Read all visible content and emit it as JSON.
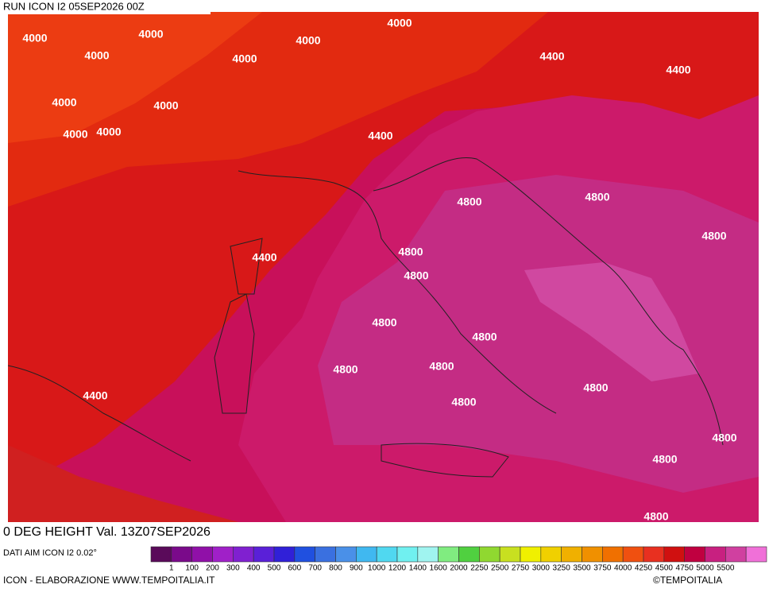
{
  "header": {
    "run": "RUN ICON I2 05SEP2026 00Z"
  },
  "map": {
    "contour_labels": [
      "4000",
      "4000",
      "4000",
      "4000",
      "4000",
      "4000",
      "4000",
      "4000",
      "4000",
      "4000",
      "4400",
      "4400",
      "4400",
      "4400",
      "4400",
      "4800",
      "4800",
      "4800",
      "4800",
      "4800",
      "4800",
      "4800",
      "4800",
      "4800",
      "4800",
      "4800",
      "4800",
      "4800",
      "4800"
    ]
  },
  "footer": {
    "title": "0 DEG HEIGHT Val. 13Z07SEP2026",
    "source": "DATI AIM ICON I2 0.02°",
    "credit": "ICON - ELABORAZIONE WWW.TEMPOITALIA.IT",
    "copyright": "©TEMPOITALIA"
  },
  "colorbar": {
    "colors": [
      "#5a0a5a",
      "#7a0a8a",
      "#9010a8",
      "#a020c8",
      "#8020d0",
      "#5a20d8",
      "#3020d8",
      "#2050e0",
      "#3a70e0",
      "#4a90e8",
      "#40b8f0",
      "#50d8f0",
      "#70f0f0",
      "#a0f4f0",
      "#80ec80",
      "#50d040",
      "#90d830",
      "#c8e020",
      "#f0f000",
      "#f0d000",
      "#f0b000",
      "#f09000",
      "#f07000",
      "#f05010",
      "#e83020",
      "#d01010",
      "#c00040",
      "#c82080",
      "#d040a0",
      "#f070d8"
    ],
    "labels": [
      "1",
      "100",
      "200",
      "300",
      "400",
      "500",
      "600",
      "700",
      "800",
      "900",
      "1000",
      "1200",
      "1400",
      "1600",
      "2000",
      "2250",
      "2500",
      "2750",
      "3000",
      "3250",
      "3500",
      "3750",
      "4000",
      "4250",
      "4500",
      "4750",
      "5000",
      "5500"
    ]
  }
}
